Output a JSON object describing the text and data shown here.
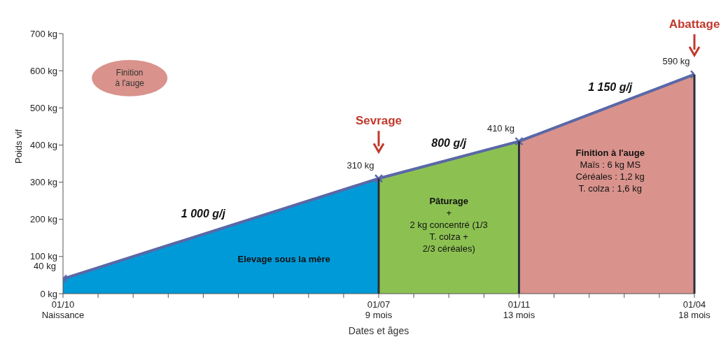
{
  "chart_data": {
    "type": "line",
    "xlabel": "Dates et âges",
    "ylabel": "Poids vif",
    "categories": [
      "01/10\nNaissance",
      null,
      null,
      null,
      null,
      null,
      null,
      null,
      null,
      "01/07\n9 mois",
      null,
      null,
      null,
      "01/11\n13 mois",
      null,
      null,
      null,
      null,
      "01/04\n18 mois"
    ],
    "ylim": [
      0,
      700
    ],
    "yticks": [
      {
        "value": 0,
        "label": "0 kg"
      },
      {
        "value": 100,
        "label": "100 kg"
      },
      {
        "value": 200,
        "label": "200 kg"
      },
      {
        "value": 300,
        "label": "300 kg"
      },
      {
        "value": 400,
        "label": "400 kg"
      },
      {
        "value": 500,
        "label": "500 kg"
      },
      {
        "value": 600,
        "label": "600 kg"
      },
      {
        "value": 700,
        "label": "700 kg"
      }
    ],
    "series": [
      {
        "type": "area",
        "color": "#009ad8",
        "values": [
          40,
          null,
          null,
          null,
          null,
          null,
          null,
          null,
          null,
          310,
          null,
          null,
          null,
          null,
          null,
          null,
          null,
          null,
          null
        ]
      },
      {
        "type": "area",
        "color": "#8cc152",
        "values": [
          null,
          null,
          null,
          null,
          null,
          null,
          null,
          null,
          null,
          310,
          null,
          null,
          null,
          410,
          null,
          null,
          null,
          null,
          null
        ]
      },
      {
        "type": "area",
        "color": "#d9938c",
        "values": [
          null,
          null,
          null,
          null,
          null,
          null,
          null,
          null,
          null,
          null,
          null,
          null,
          null,
          410,
          null,
          null,
          null,
          null,
          590
        ]
      },
      {
        "color": "#5a68a8",
        "values": [
          40,
          null,
          null,
          null,
          null,
          null,
          null,
          null,
          null,
          310,
          null,
          null,
          null,
          410,
          null,
          null,
          null,
          null,
          590
        ],
        "marker": "cross",
        "line_style": "solid",
        "value_labels": [
          "40 kg",
          null,
          null,
          null,
          null,
          null,
          null,
          null,
          null,
          "310 kg",
          null,
          null,
          null,
          "410 kg",
          null,
          null,
          null,
          null,
          "590 kg"
        ]
      }
    ],
    "annotations": [
      "1 000 g/j",
      "800 g/j",
      "1 150 g/j",
      "Sevrage",
      "Abattage",
      "Elevage sous la mère",
      "Pâturage\n+\n2 kg concentré (1/3\nT. colza +\n2/3 céréales)",
      "Finition à l'auge\nMaïs : 6 kg MS\nCéréales : 1,2 kg\nT. colza : 1,6 kg",
      "Finition\nà l'auge"
    ]
  }
}
